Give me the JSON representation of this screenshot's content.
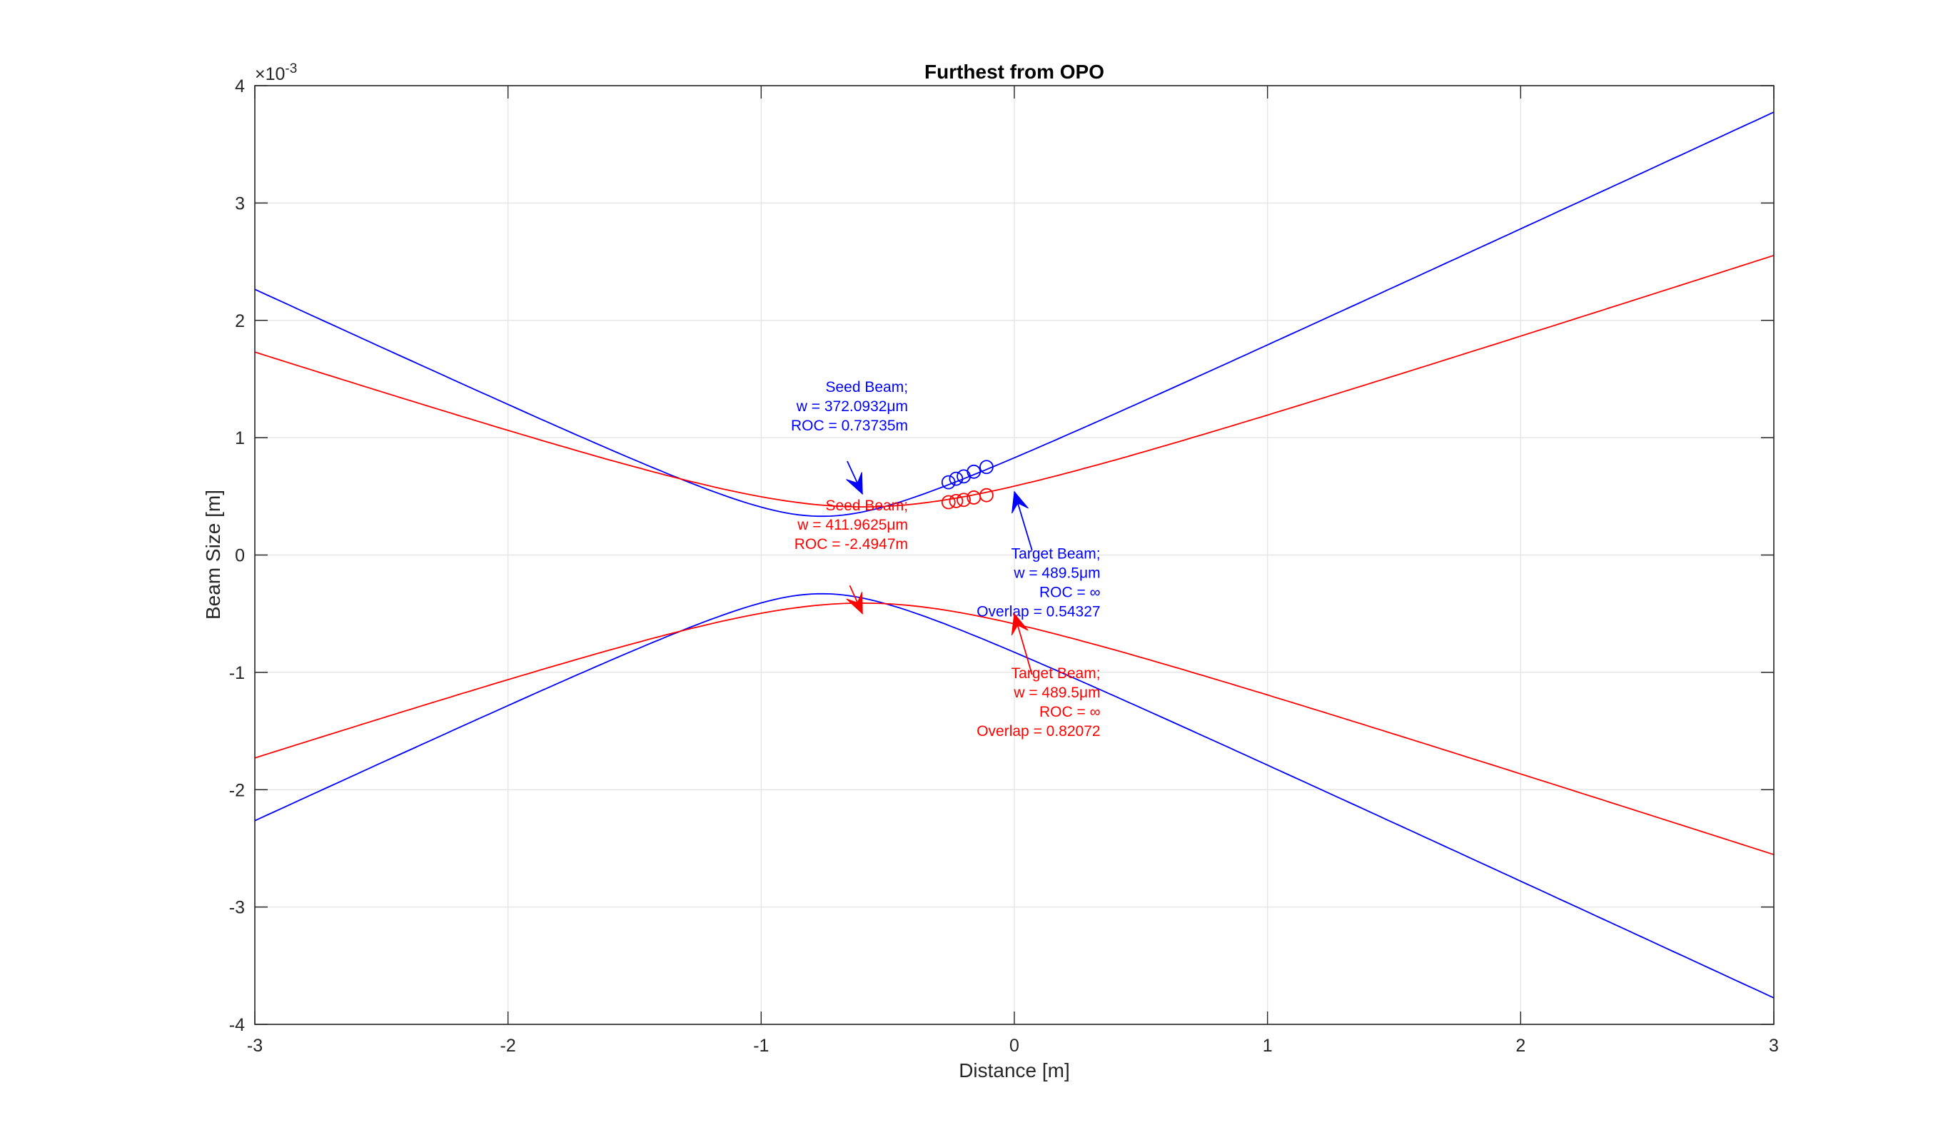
{
  "chart_data": {
    "type": "line",
    "title": "Furthest from OPO",
    "xlabel": "Distance [m]",
    "ylabel": "Beam Size [m]",
    "y_exponent_label": "×10",
    "y_exponent_power": "-3",
    "y_multiplier": 0.001,
    "xlim": [
      -3,
      3
    ],
    "ylim": [
      -4,
      4
    ],
    "grid": true,
    "x_ticks": [
      -3,
      -2,
      -1,
      0,
      1,
      2,
      3
    ],
    "x_tick_labels": [
      "-3",
      "-2",
      "-1",
      "0",
      "1",
      "2",
      "3"
    ],
    "y_ticks": [
      -4,
      -3,
      -2,
      -1,
      0,
      1,
      2,
      3,
      4
    ],
    "y_tick_labels": [
      "-4",
      "-3",
      "-2",
      "-1",
      "0",
      "1",
      "2",
      "3",
      "4"
    ],
    "series": [
      {
        "color": "#0000ff",
        "beam": {
          "waist_x": -0.76,
          "waist_w": 0.33,
          "slope": 1.0
        },
        "x": [
          -3,
          -2.5,
          -2,
          -1.5,
          -1.0,
          -0.76,
          -0.5,
          0,
          0.5,
          1.0,
          1.5,
          2.0,
          2.5,
          3.0
        ],
        "y_upper": [
          2.34,
          1.83,
          1.32,
          0.83,
          0.41,
          0.33,
          0.42,
          0.83,
          1.31,
          1.81,
          2.31,
          2.8,
          3.3,
          3.94
        ],
        "y_lower": [
          -2.34,
          -1.83,
          -1.32,
          -0.83,
          -0.41,
          -0.33,
          -0.42,
          -0.83,
          -1.31,
          -1.81,
          -2.31,
          -2.8,
          -3.3,
          -3.94
        ],
        "markers_x": [
          -0.26,
          -0.23,
          -0.2,
          -0.16,
          -0.11
        ],
        "markers_y": [
          0.62,
          0.65,
          0.67,
          0.71,
          0.75
        ]
      },
      {
        "color": "#ff0000",
        "beam": {
          "waist_x": -0.6,
          "waist_w": 0.41,
          "slope": 0.7
        },
        "x": [
          -3,
          -2.5,
          -2,
          -1.5,
          -1.0,
          -0.6,
          0,
          0.5,
          1.0,
          1.5,
          2.0,
          2.5,
          3.0
        ],
        "y_upper": [
          2.13,
          1.72,
          1.32,
          0.95,
          0.6,
          0.41,
          0.58,
          0.92,
          1.3,
          1.68,
          2.07,
          2.5,
          2.96
        ],
        "y_lower": [
          -2.13,
          -1.72,
          -1.32,
          -0.95,
          -0.6,
          -0.41,
          -0.58,
          -0.92,
          -1.3,
          -1.68,
          -2.07,
          -2.5,
          -2.96
        ],
        "markers_x": [
          -0.26,
          -0.23,
          -0.2,
          -0.16,
          -0.11
        ],
        "markers_y": [
          0.45,
          0.46,
          0.47,
          0.49,
          0.51
        ]
      }
    ],
    "annotations": [
      {
        "color": "#0000ff",
        "lines": [
          "Seed Beam;",
          "w = 372.0932μm",
          "ROC = 0.73735m"
        ],
        "align": "end",
        "text_x": -0.42,
        "text_y": 1.39,
        "arrow_from": [
          -0.66,
          0.8
        ],
        "arrow_to": [
          -0.6,
          0.52
        ]
      },
      {
        "color": "#ff0000",
        "lines": [
          "Seed Beam;",
          "w = 411.9625μm",
          "ROC = -2.4947m"
        ],
        "align": "end",
        "text_x": -0.42,
        "text_y": 0.38,
        "arrow_from": [
          -0.65,
          -0.26
        ],
        "arrow_to": [
          -0.6,
          -0.5
        ]
      },
      {
        "color": "#0000ff",
        "lines": [
          "Target Beam;",
          "w = 489.5μm",
          "ROC = ∞",
          "Overlap = 0.54327"
        ],
        "align": "end",
        "text_x": 0.34,
        "text_y": -0.03,
        "arrow_from": [
          0.07,
          0.04
        ],
        "arrow_to": [
          0.0,
          0.54
        ]
      },
      {
        "color": "#ff0000",
        "lines": [
          "Target Beam;",
          "w = 489.5μm",
          "ROC = ∞",
          "Overlap = 0.82072"
        ],
        "align": "end",
        "text_x": 0.34,
        "text_y": -1.05,
        "arrow_from": [
          0.07,
          -1.02
        ],
        "arrow_to": [
          0.0,
          -0.5
        ]
      }
    ]
  }
}
